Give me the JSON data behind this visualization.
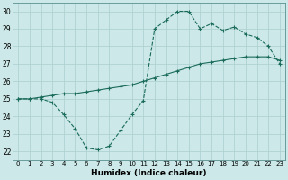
{
  "xlabel": "Humidex (Indice chaleur)",
  "bg_color": "#cce8e8",
  "grid_color": "#aacece",
  "line_color": "#1a6b5a",
  "xlim": [
    -0.5,
    23.5
  ],
  "ylim": [
    21.5,
    30.5
  ],
  "xticks": [
    0,
    1,
    2,
    3,
    4,
    5,
    6,
    7,
    8,
    9,
    10,
    11,
    12,
    13,
    14,
    15,
    16,
    17,
    18,
    19,
    20,
    21,
    22,
    23
  ],
  "yticks": [
    22,
    23,
    24,
    25,
    26,
    27,
    28,
    29,
    30
  ],
  "line1_x": [
    0,
    1,
    2,
    3,
    4,
    5,
    6,
    7,
    8,
    9,
    10,
    11,
    12,
    13,
    14,
    15,
    16,
    17,
    18,
    19,
    20,
    21,
    22,
    23
  ],
  "line1_y": [
    25.0,
    25.0,
    25.0,
    24.8,
    24.1,
    23.3,
    22.2,
    22.1,
    22.3,
    23.2,
    24.1,
    24.9,
    29.0,
    29.5,
    30.0,
    30.0,
    29.0,
    29.3,
    28.9,
    29.1,
    28.7,
    28.5,
    28.0,
    27.0
  ],
  "line2_x": [
    0,
    1,
    2,
    3,
    4,
    5,
    6,
    7,
    8,
    9,
    10,
    11,
    12,
    13,
    14,
    15,
    16,
    17,
    18,
    19,
    20,
    21,
    22,
    23
  ],
  "line2_y": [
    25.0,
    25.0,
    25.1,
    25.2,
    25.3,
    25.3,
    25.4,
    25.5,
    25.6,
    25.7,
    25.8,
    26.0,
    26.2,
    26.4,
    26.6,
    26.8,
    27.0,
    27.1,
    27.2,
    27.3,
    27.4,
    27.4,
    27.4,
    27.2
  ]
}
